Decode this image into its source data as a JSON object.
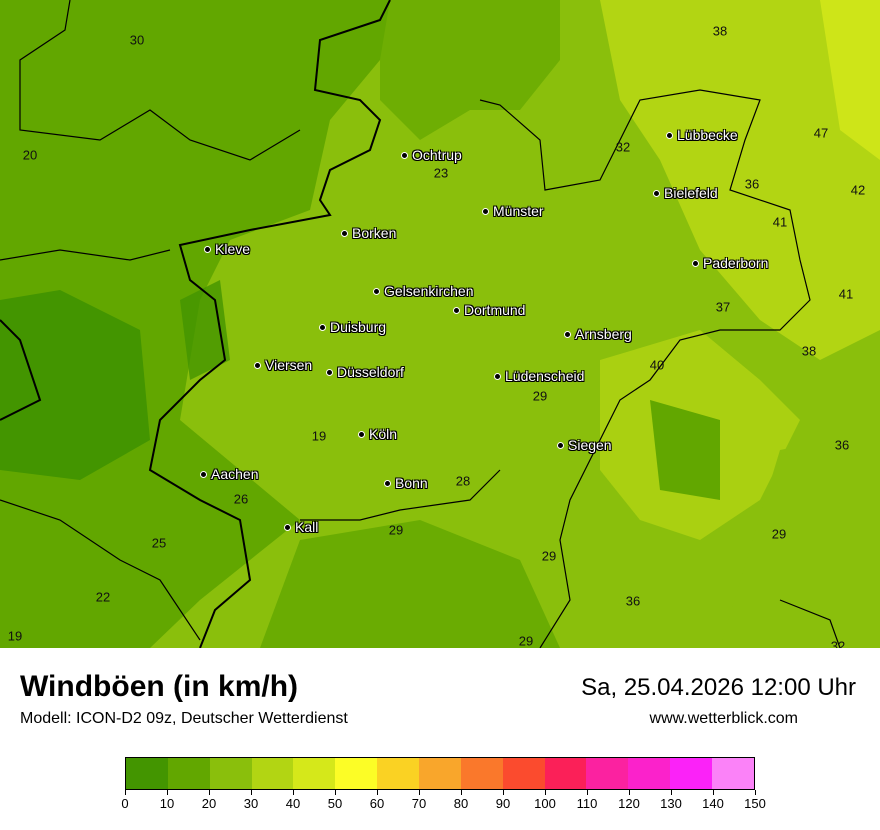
{
  "title": "Windböen (in km/h)",
  "subtitle": "Modell: ICON-D2 09z, Deutscher Wetterdienst",
  "datetime": "Sa, 25.04.2026 12:00 Uhr",
  "website": "www.wetterblick.com",
  "legend": {
    "ticks": [
      "0",
      "10",
      "20",
      "30",
      "40",
      "50",
      "60",
      "70",
      "80",
      "90",
      "100",
      "110",
      "120",
      "130",
      "140",
      "150"
    ],
    "colors": [
      "#439500",
      "#62a700",
      "#8abf0c",
      "#b2d513",
      "#d5e81a",
      "#fcfd26",
      "#fad223",
      "#f9a62b",
      "#fa782b",
      "#fb4b2e",
      "#fb2058",
      "#fb22a0",
      "#fb22cb",
      "#fb22f8",
      "#fb82f8"
    ]
  },
  "cities": [
    "Ochtrup",
    "Münster",
    "Lübbecke",
    "Bielefeld",
    "Borken",
    "Kleve",
    "Paderborn",
    "Gelsenkirchen",
    "Dortmund",
    "Duisburg",
    "Arnsberg",
    "Viersen",
    "Düsseldorf",
    "Lüdenscheid",
    "Köln",
    "Siegen",
    "Aachen",
    "Bonn",
    "Kall"
  ],
  "values": [
    "30",
    "38",
    "20",
    "47",
    "32",
    "23",
    "36",
    "42",
    "41",
    "41",
    "37",
    "38",
    "40",
    "29",
    "19",
    "36",
    "28",
    "26",
    "29",
    "29",
    "25",
    "29",
    "22",
    "36",
    "19",
    "29",
    "32"
  ]
}
